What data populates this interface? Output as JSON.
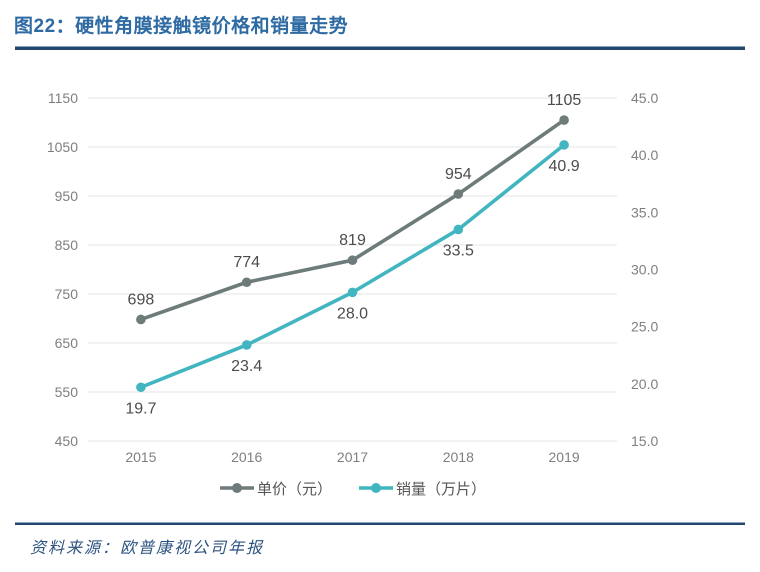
{
  "header": {
    "title": "图22：硬性角膜接触镜价格和销量走势"
  },
  "footer": {
    "source": "资料来源：欧普康视公司年报"
  },
  "colors": {
    "title_blue": "#2f6ba3",
    "divider_navy": "#24476e",
    "grid": "#e5e5e5",
    "tick_text": "#7f7f7f",
    "data_label_text": "#4d4d4d",
    "source_text": "#2e5380",
    "price_series": "#6e7b7b",
    "volume_series": "#41b5c0"
  },
  "chart_data": {
    "type": "line",
    "title": "图22：硬性角膜接触镜价格和销量走势",
    "categories": [
      "2015",
      "2016",
      "2017",
      "2018",
      "2019"
    ],
    "series": [
      {
        "name": "单价（元）",
        "axis": "left",
        "color": "#6e7b7b",
        "values": [
          698,
          774,
          819,
          954,
          1105
        ],
        "labels": [
          "698",
          "774",
          "819",
          "954",
          "1105"
        ],
        "label_position": "above"
      },
      {
        "name": "销量（万片）",
        "axis": "right",
        "color": "#41b5c0",
        "values": [
          19.7,
          23.4,
          28.0,
          33.5,
          40.9
        ],
        "labels": [
          "19.7",
          "23.4",
          "28.0",
          "33.5",
          "40.9"
        ],
        "label_position": "below"
      }
    ],
    "left_axis": {
      "min": 450,
      "max": 1150,
      "ticks": [
        "1150",
        "1050",
        "950",
        "850",
        "750",
        "650",
        "550",
        "450"
      ]
    },
    "right_axis": {
      "min": 15,
      "max": 45,
      "ticks": [
        "45.0",
        "40.0",
        "35.0",
        "30.0",
        "25.0",
        "20.0",
        "15.0"
      ]
    },
    "grid": true,
    "legend_position": "bottom"
  }
}
